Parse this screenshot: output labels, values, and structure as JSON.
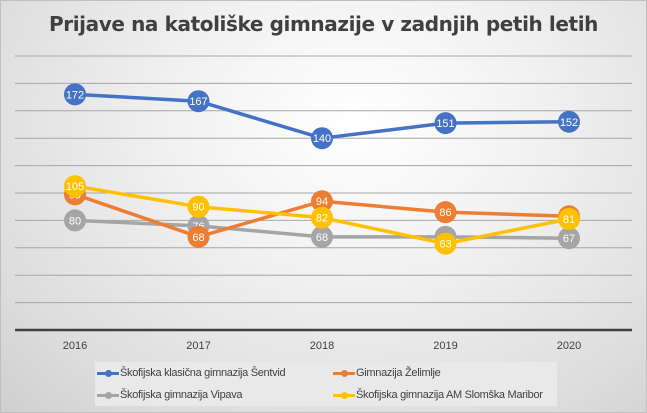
{
  "chart_data": {
    "type": "line",
    "title": "Prijave na katoliške gimnazije v zadnjih petih letih",
    "xlabel": "",
    "ylabel": "",
    "categories": [
      "2016",
      "2017",
      "2018",
      "2019",
      "2020"
    ],
    "ylim": [
      0,
      200
    ],
    "ytick_step": 20,
    "y_tick_labels_visible": false,
    "grid": true,
    "legend_position": "bottom",
    "data_labels": true,
    "series": [
      {
        "name": "Škofijska klasična gimnazija Šentvid",
        "color": "#4472C4",
        "values": [
          172,
          167,
          140,
          151,
          152
        ]
      },
      {
        "name": "Gimnazija Želimlje",
        "color": "#ED7D31",
        "values": [
          99,
          68,
          94,
          86,
          83
        ]
      },
      {
        "name": "Škofijska gimnazija Vipava",
        "color": "#A5A5A5",
        "values": [
          80,
          76,
          68,
          68,
          67
        ]
      },
      {
        "name": "Škofijska gimnazija AM Slomška Maribor",
        "color": "#FFC000",
        "values": [
          105,
          90,
          82,
          63,
          81
        ]
      }
    ],
    "draw_order": [
      2,
      1,
      3,
      0
    ]
  }
}
